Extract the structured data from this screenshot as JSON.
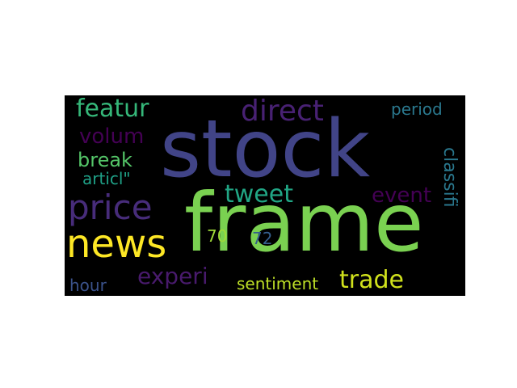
{
  "wordcloud": {
    "background": "#000000",
    "words": [
      {
        "key": "stock",
        "text": "stock",
        "color": "#414487"
      },
      {
        "key": "frame",
        "text": "frame",
        "color": "#7ad151"
      },
      {
        "key": "news",
        "text": "news",
        "color": "#fde725"
      },
      {
        "key": "price",
        "text": "price",
        "color": "#472c7a"
      },
      {
        "key": "direct",
        "text": "direct",
        "color": "#482173"
      },
      {
        "key": "featur",
        "text": "featur",
        "color": "#35b779"
      },
      {
        "key": "volum",
        "text": "volum",
        "color": "#440154"
      },
      {
        "key": "break",
        "text": "break",
        "color": "#54c568"
      },
      {
        "key": "articl",
        "text": "articl\"",
        "color": "#1fa187"
      },
      {
        "key": "tweet",
        "text": "tweet",
        "color": "#21a685"
      },
      {
        "key": "event",
        "text": "event",
        "color": "#440154"
      },
      {
        "key": "period",
        "text": "period",
        "color": "#2a788e"
      },
      {
        "key": "classifi",
        "text": "classifi",
        "color": "#2a788e"
      },
      {
        "key": "n70",
        "text": "70",
        "color": "#a0da39"
      },
      {
        "key": "n72",
        "text": "72",
        "color": "#355f8d"
      },
      {
        "key": "experi",
        "text": "experi",
        "color": "#481a6c"
      },
      {
        "key": "trade",
        "text": "trade",
        "color": "#d0e11c"
      },
      {
        "key": "sentiment",
        "text": "sentiment",
        "color": "#bddf26"
      },
      {
        "key": "hour",
        "text": "hour",
        "color": "#3b528b"
      }
    ]
  }
}
